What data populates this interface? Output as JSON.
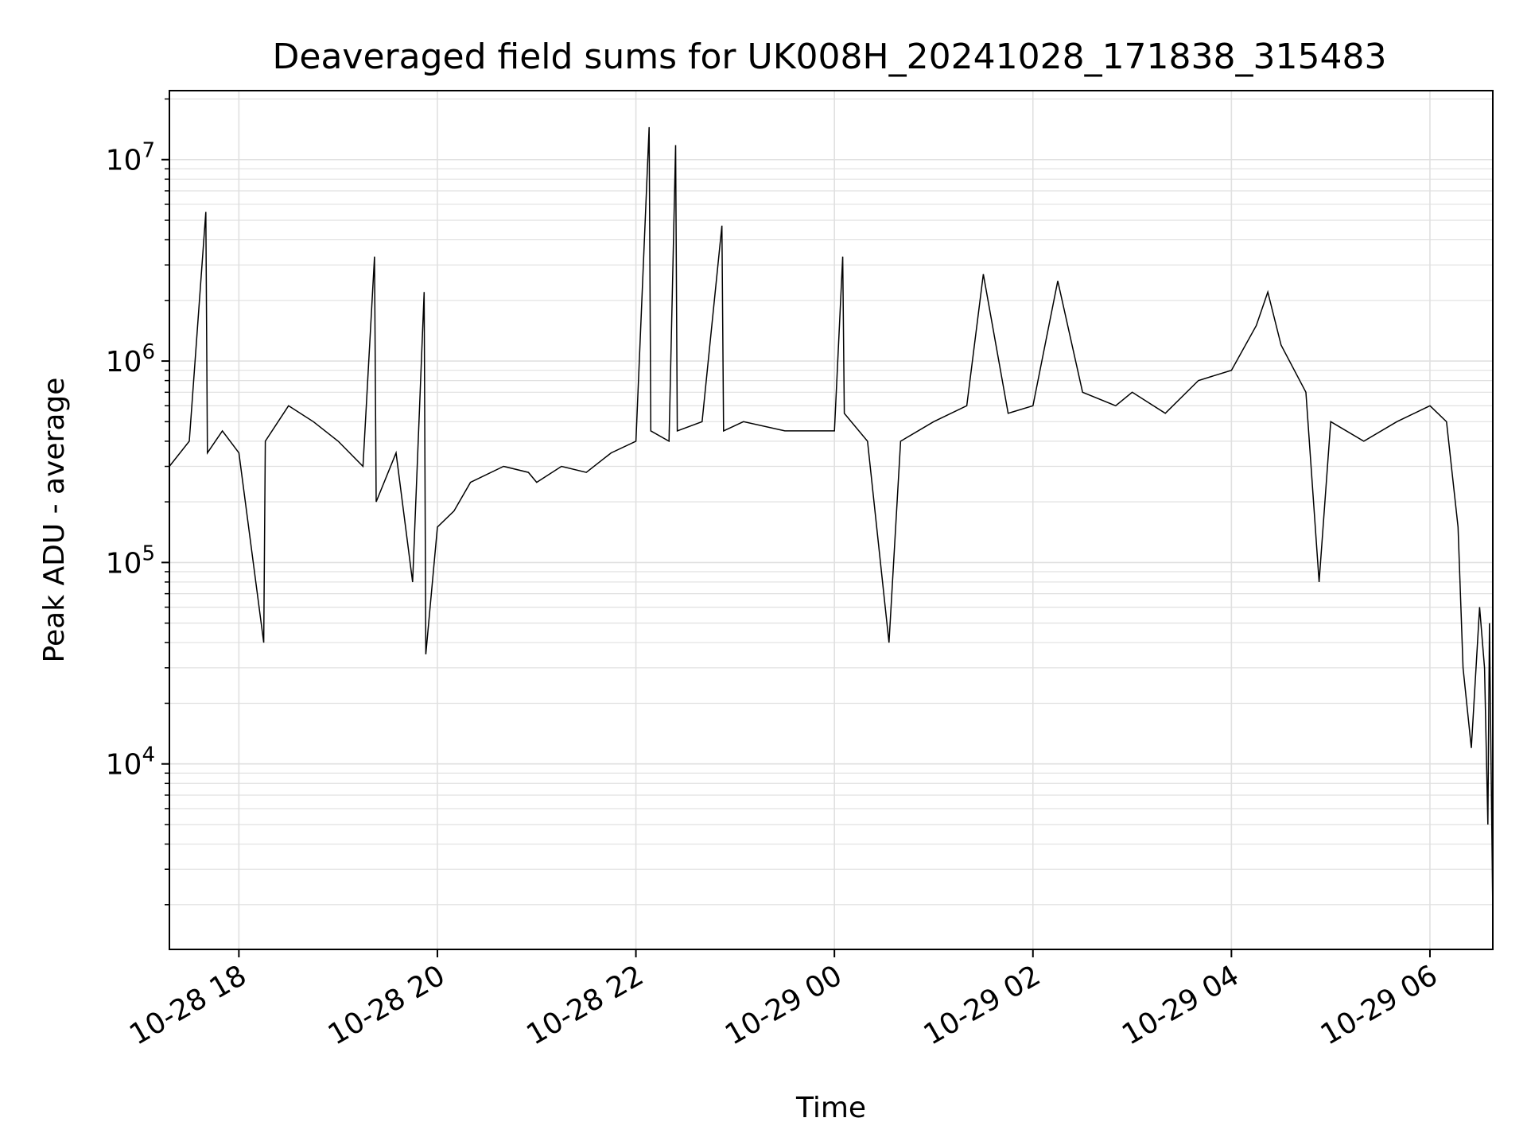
{
  "chart_data": {
    "type": "line",
    "title": "Deaveraged field sums for UK008H_20241028_171838_315483",
    "xlabel": "Time",
    "ylabel": "Peak ADU - average",
    "yscale": "log",
    "ylim": [
      1200,
      22000000
    ],
    "xlim": [
      "2024-10-28 17:18",
      "2024-10-29 06:38"
    ],
    "x_ticks": [
      {
        "t": "2024-10-28 18:00",
        "label": "10-28 18"
      },
      {
        "t": "2024-10-28 20:00",
        "label": "10-28 20"
      },
      {
        "t": "2024-10-28 22:00",
        "label": "10-28 22"
      },
      {
        "t": "2024-10-29 00:00",
        "label": "10-29 00"
      },
      {
        "t": "2024-10-29 02:00",
        "label": "10-29 02"
      },
      {
        "t": "2024-10-29 04:00",
        "label": "10-29 04"
      },
      {
        "t": "2024-10-29 06:00",
        "label": "10-29 06"
      }
    ],
    "y_ticks": [
      {
        "value": 10000,
        "base": "10",
        "exp": "4"
      },
      {
        "value": 100000,
        "base": "10",
        "exp": "5"
      },
      {
        "value": 1000000,
        "base": "10",
        "exp": "6"
      },
      {
        "value": 10000000,
        "base": "10",
        "exp": "7"
      }
    ],
    "grid": true,
    "line_color": "#000000",
    "grid_color": "#e0e0e0",
    "series": [
      {
        "x": [
          "2024-10-28 17:18",
          "2024-10-28 17:30",
          "2024-10-28 17:40",
          "2024-10-28 17:41",
          "2024-10-28 17:50",
          "2024-10-28 18:00",
          "2024-10-28 18:15",
          "2024-10-28 18:16",
          "2024-10-28 18:30",
          "2024-10-28 18:45",
          "2024-10-28 19:00",
          "2024-10-28 19:15",
          "2024-10-28 19:22",
          "2024-10-28 19:23",
          "2024-10-28 19:35",
          "2024-10-28 19:45",
          "2024-10-28 19:52",
          "2024-10-28 19:53",
          "2024-10-28 20:00",
          "2024-10-28 20:10",
          "2024-10-28 20:20",
          "2024-10-28 20:40",
          "2024-10-28 20:55",
          "2024-10-28 21:00",
          "2024-10-28 21:15",
          "2024-10-28 21:30",
          "2024-10-28 21:45",
          "2024-10-28 22:00",
          "2024-10-28 22:08",
          "2024-10-28 22:09",
          "2024-10-28 22:20",
          "2024-10-28 22:24",
          "2024-10-28 22:25",
          "2024-10-28 22:40",
          "2024-10-28 22:52",
          "2024-10-28 22:53",
          "2024-10-28 23:05",
          "2024-10-28 23:30",
          "2024-10-29 00:00",
          "2024-10-29 00:05",
          "2024-10-29 00:06",
          "2024-10-29 00:20",
          "2024-10-29 00:33",
          "2024-10-29 00:40",
          "2024-10-29 01:00",
          "2024-10-29 01:20",
          "2024-10-29 01:30",
          "2024-10-29 01:45",
          "2024-10-29 02:00",
          "2024-10-29 02:15",
          "2024-10-29 02:30",
          "2024-10-29 02:50",
          "2024-10-29 03:00",
          "2024-10-29 03:20",
          "2024-10-29 03:40",
          "2024-10-29 04:00",
          "2024-10-29 04:15",
          "2024-10-29 04:22",
          "2024-10-29 04:30",
          "2024-10-29 04:45",
          "2024-10-29 04:53",
          "2024-10-29 05:00",
          "2024-10-29 05:20",
          "2024-10-29 05:40",
          "2024-10-29 06:00",
          "2024-10-29 06:10",
          "2024-10-29 06:17",
          "2024-10-29 06:20",
          "2024-10-29 06:25",
          "2024-10-29 06:30",
          "2024-10-29 06:33",
          "2024-10-29 06:35",
          "2024-10-29 06:36",
          "2024-10-29 06:38"
        ],
        "values": [
          300000,
          400000,
          5500000,
          350000,
          450000,
          350000,
          40000,
          400000,
          600000,
          500000,
          400000,
          300000,
          3300000,
          200000,
          350000,
          80000,
          2200000,
          35000,
          150000,
          180000,
          250000,
          300000,
          280000,
          250000,
          300000,
          280000,
          350000,
          400000,
          14500000,
          450000,
          400000,
          11800000,
          450000,
          500000,
          4700000,
          450000,
          500000,
          450000,
          450000,
          3300000,
          550000,
          400000,
          40000,
          400000,
          500000,
          600000,
          2700000,
          550000,
          600000,
          2500000,
          700000,
          600000,
          700000,
          550000,
          800000,
          900000,
          1500000,
          2200000,
          1200000,
          700000,
          80000,
          500000,
          400000,
          500000,
          600000,
          500000,
          150000,
          30000,
          12000,
          60000,
          30000,
          5000,
          50000,
          1800
        ]
      }
    ]
  }
}
